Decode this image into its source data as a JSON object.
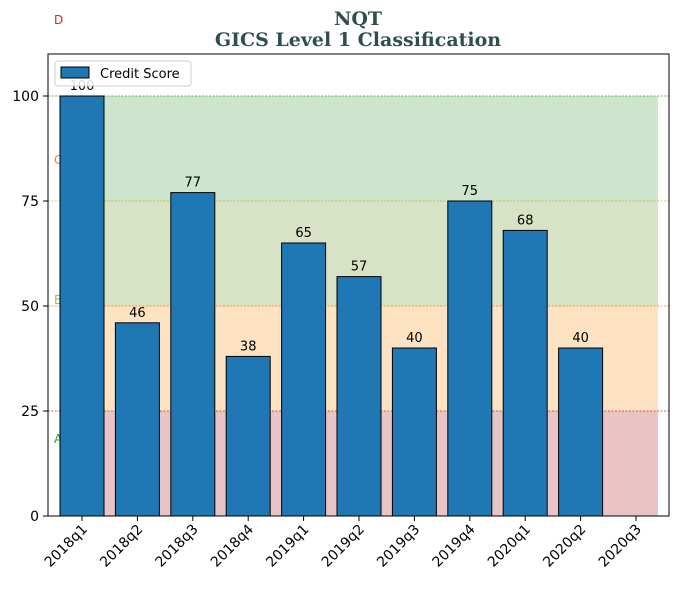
{
  "chart_data": {
    "type": "bar",
    "title": "NQT",
    "subtitle": "GICS Level 1 Classification",
    "xlabel": "",
    "ylabel": "",
    "categories": [
      "2018q1",
      "2018q2",
      "2018q3",
      "2018q4",
      "2019q1",
      "2019q2",
      "2019q3",
      "2019q4",
      "2020q1",
      "2020q2",
      "2020q3"
    ],
    "series": [
      {
        "name": "Credit Score",
        "values": [
          100,
          46,
          77,
          38,
          65,
          57,
          40,
          75,
          68,
          40,
          null
        ],
        "color": "#1f77b4"
      }
    ],
    "data_labels": [
      "100",
      "46",
      "77",
      "38",
      "65",
      "57",
      "40",
      "75",
      "68",
      "40",
      ""
    ],
    "ylim": [
      0,
      110
    ],
    "yticks": [
      0,
      25,
      50,
      75,
      100
    ],
    "legend": {
      "position": "top-left",
      "entries": [
        "Credit Score"
      ]
    },
    "bands": [
      {
        "label": "A",
        "from": 0,
        "to": 25,
        "fill": "#e8c4c6",
        "line": "#d62728",
        "label_color": "#2ca02c"
      },
      {
        "label": "B",
        "from": 25,
        "to": 50,
        "fill": "#fde3c2",
        "line": "#ff7f0e",
        "label_color": "#bcbd22"
      },
      {
        "label": "C",
        "from": 50,
        "to": 75,
        "fill": "#d8e2c4",
        "line": "#bcbd22",
        "label_color": "#ff7f0e"
      },
      {
        "label": "D",
        "from": 75,
        "to": 100,
        "fill": "#cce5cc",
        "line": "#2ca02c",
        "label_color": "#d62728"
      }
    ],
    "grid": false
  }
}
